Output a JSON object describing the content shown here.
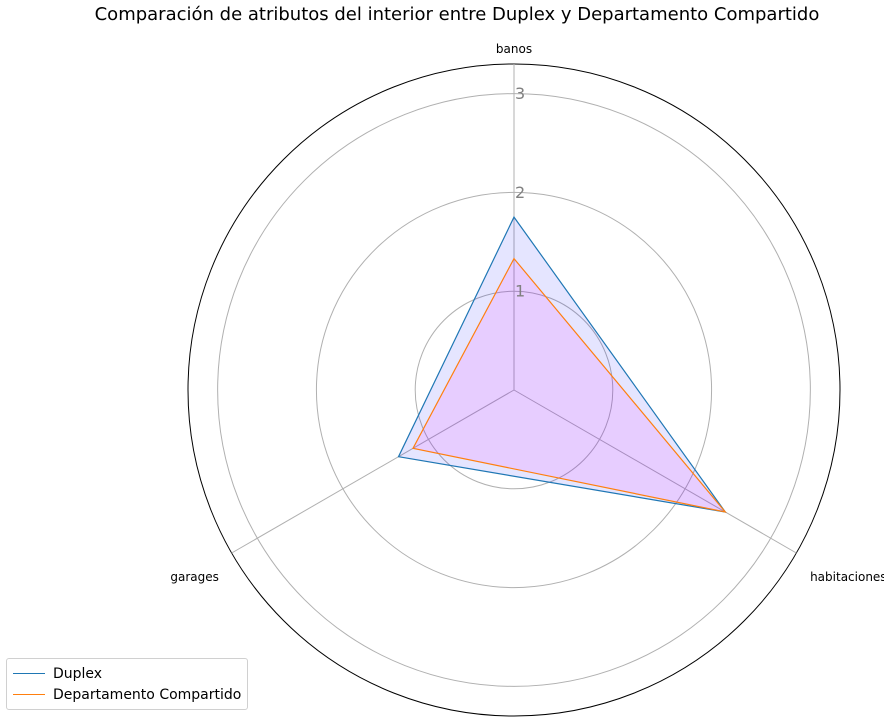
{
  "chart_data": {
    "type": "radar",
    "title": "Comparación de atributos del interior entre Duplex y Departamento Compartido",
    "axes": [
      "banos",
      "habitaciones",
      "garages"
    ],
    "rticks": [
      1,
      2,
      3
    ],
    "rlim": [
      0,
      3.3
    ],
    "grid": true,
    "legend_position": "bottom-left",
    "series": [
      {
        "name": "Duplex",
        "values": [
          1.75,
          2.47,
          1.35
        ],
        "color": "#1f77b4",
        "fill": "#0000ff",
        "fill_opacity": 0.1
      },
      {
        "name": "Departamento Compartido",
        "values": [
          1.33,
          2.47,
          1.18
        ],
        "color": "#ff7f0e",
        "fill": "#ff00ff",
        "fill_opacity": 0.1
      }
    ]
  }
}
